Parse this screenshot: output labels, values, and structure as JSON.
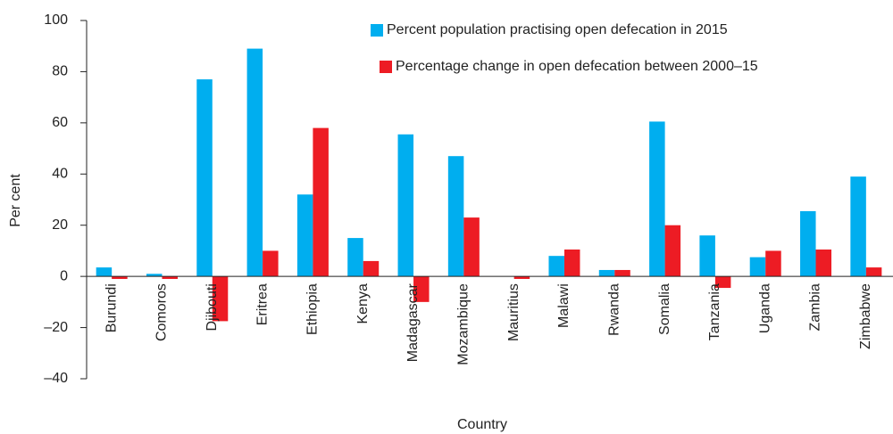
{
  "chart_data": {
    "type": "bar",
    "x_label": "Country",
    "y_label": "Per cent",
    "categories": [
      "Burundi",
      "Comoros",
      "Djibouti",
      "Eritrea",
      "Ethiopia",
      "Kenya",
      "Madagascar",
      "Mozambique",
      "Mauritius",
      "Malawi",
      "Rwanda",
      "Somalia",
      "Tanzania",
      "Uganda",
      "Zambia",
      "Zimbabwe"
    ],
    "series": [
      {
        "name": "Percent population practising open defecation in 2015",
        "color": "#00aeef",
        "values": [
          3.5,
          1,
          77,
          89,
          32,
          15,
          55.5,
          47,
          0,
          8,
          2.5,
          60.5,
          16,
          7.5,
          25.5,
          39
        ]
      },
      {
        "name": "Percentage change in open defecation between 2000–15",
        "color": "#ed1c24",
        "values": [
          -1,
          -1,
          -17.5,
          10,
          58,
          6,
          -10,
          23,
          -1,
          10.5,
          2.5,
          20,
          -4.5,
          10,
          10.5,
          3.5
        ]
      }
    ],
    "ylim": [
      -40,
      100
    ],
    "yticks": [
      {
        "value": -40,
        "label": "–40"
      },
      {
        "value": -20,
        "label": "–20"
      },
      0,
      20,
      40,
      60,
      80,
      100
    ],
    "legend": "top-right"
  }
}
